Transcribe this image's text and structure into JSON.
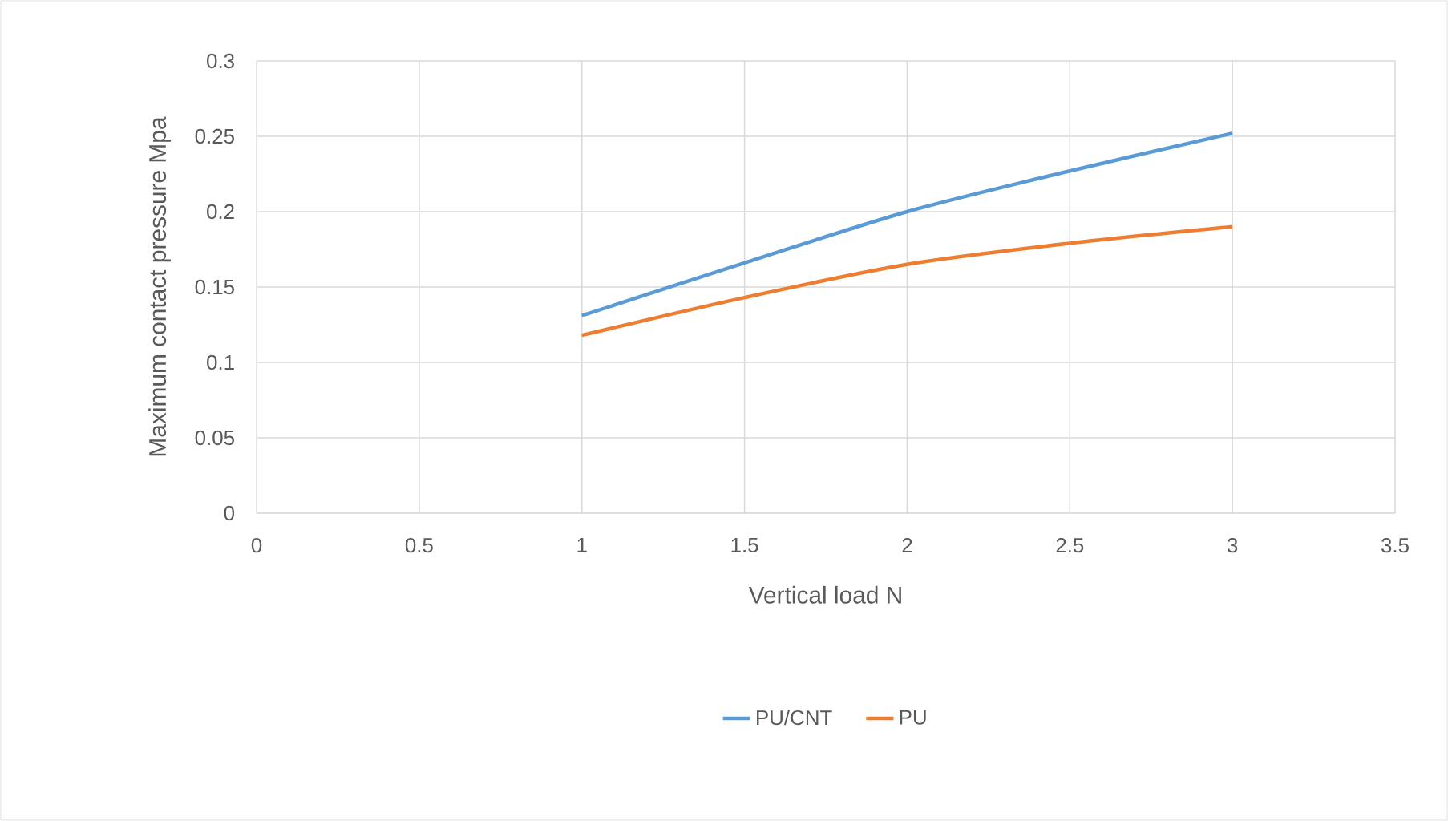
{
  "chart_data": {
    "type": "line",
    "xlabel": "Vertical load N",
    "ylabel": "Maximum contact pressure Mpa",
    "x": [
      1,
      1.5,
      2,
      2.5,
      3
    ],
    "series": [
      {
        "name": "PU/CNT",
        "color": "#5b9bd5",
        "values": [
          0.131,
          0.166,
          0.2,
          0.227,
          0.252
        ]
      },
      {
        "name": "PU",
        "color": "#ed7d31",
        "values": [
          0.118,
          0.143,
          0.165,
          0.179,
          0.19
        ]
      }
    ],
    "xlim": [
      0,
      3.5
    ],
    "xticks": [
      0,
      0.5,
      1,
      1.5,
      2,
      2.5,
      3,
      3.5
    ],
    "ylim": [
      0,
      0.3
    ],
    "yticks": [
      0,
      0.05,
      0.1,
      0.15,
      0.2,
      0.25,
      0.3
    ],
    "grid": true,
    "legend": "bottom",
    "marker": "none",
    "line_style": "solid"
  }
}
